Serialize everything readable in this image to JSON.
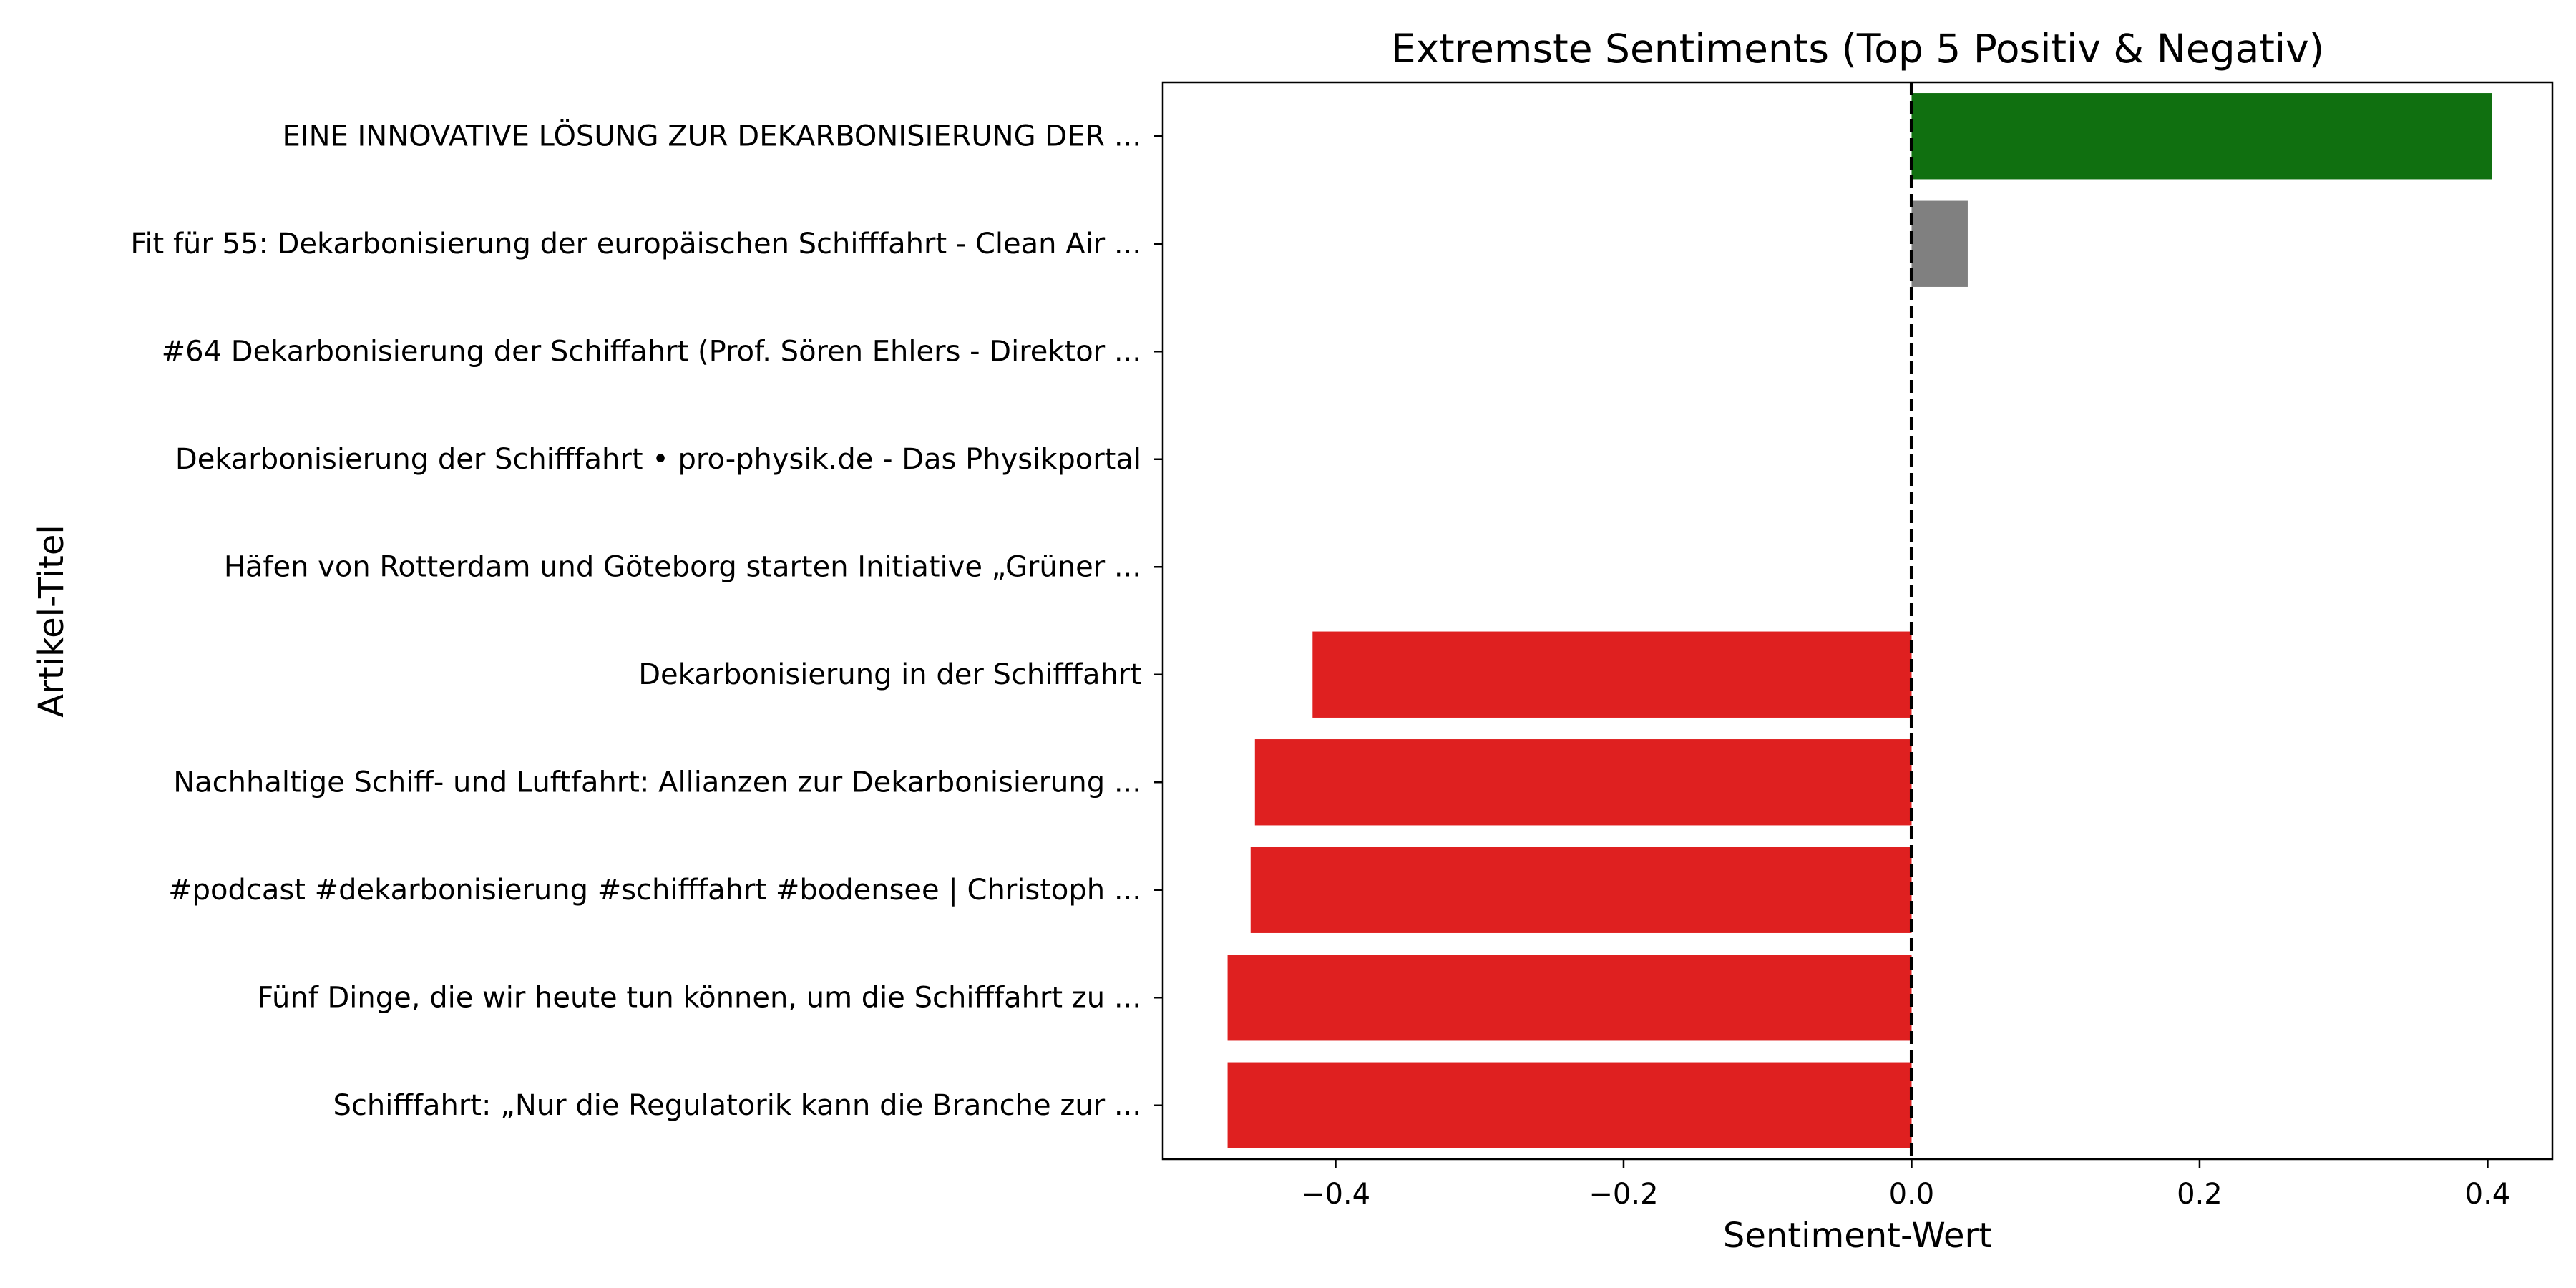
{
  "chart_data": {
    "type": "bar",
    "orientation": "horizontal",
    "title": "Extremste Sentiments (Top 5 Positiv & Negativ)",
    "xlabel": "Sentiment-Wert",
    "ylabel": "Artikel-Titel",
    "xlim": [
      -0.52,
      0.445
    ],
    "xticks": [
      -0.4,
      -0.2,
      0.0,
      0.2,
      0.4
    ],
    "xtick_labels": [
      "−0.4",
      "−0.2",
      "0.0",
      "0.2",
      "0.4"
    ],
    "reference_line": {
      "x": 0.0,
      "style": "dashed",
      "color": "#000000"
    },
    "grid": false,
    "categories": [
      "EINE INNOVATIVE LÖSUNG ZUR DEKARBONISIERUNG DER ...",
      "Fit für 55: Dekarbonisierung der europäischen Schifffahrt - Clean Air ...",
      "#64 Dekarbonisierung der Schiffahrt (Prof. Sören Ehlers - Direktor ...",
      "Dekarbonisierung der Schifffahrt • pro-physik.de - Das Physikportal",
      "Häfen von Rotterdam und Göteborg starten Initiative „Grüner ...",
      "Dekarbonisierung in der Schifffahrt",
      "Nachhaltige Schiff- und Luftfahrt: Allianzen zur Dekarbonisierung ...",
      "#podcast #dekarbonisierung #schifffahrt #bodensee | Christoph ...",
      "Fünf Dinge, die wir heute tun können, um die Schifffahrt zu ...",
      "Schifffahrt: „Nur die Regulatorik kann die Branche zur ..."
    ],
    "values": [
      0.403,
      0.039,
      0.0,
      0.0,
      0.0,
      -0.416,
      -0.456,
      -0.459,
      -0.475,
      -0.475
    ],
    "colors": [
      "#107010",
      "#808080",
      "#808080",
      "#808080",
      "#808080",
      "#df2020",
      "#df2020",
      "#df2020",
      "#df2020",
      "#df2020"
    ]
  }
}
